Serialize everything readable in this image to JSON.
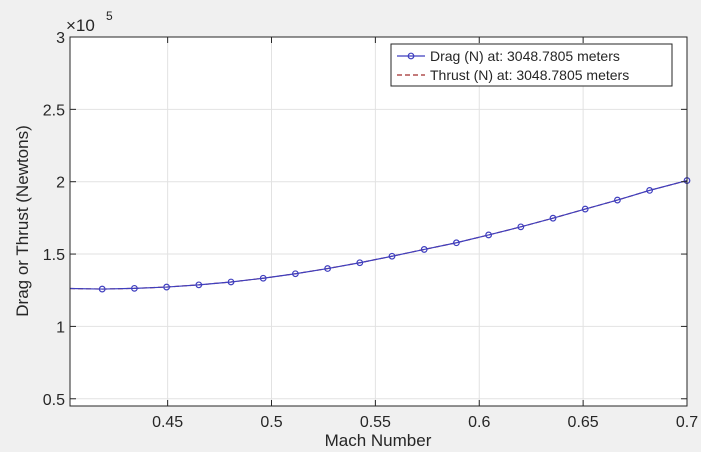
{
  "chart_data": {
    "type": "line",
    "xlabel": "Mach Number",
    "ylabel": "Drag or Thrust (Newtons)",
    "exponent_label": "×10",
    "exponent_power": "5",
    "xlim": [
      0.403,
      0.7
    ],
    "ylim": [
      0.45,
      3.0
    ],
    "x_ticks": [
      0.45,
      0.5,
      0.55,
      0.6,
      0.65,
      0.7
    ],
    "x_tick_labels": [
      "0.45",
      "0.5",
      "0.55",
      "0.6",
      "0.65",
      "0.7"
    ],
    "y_ticks": [
      0.5,
      1,
      1.5,
      2,
      2.5,
      3
    ],
    "y_tick_labels": [
      "0.5",
      "1",
      "1.5",
      "2",
      "2.5",
      "3"
    ],
    "grid": true,
    "legend_position": "top-right",
    "series": [
      {
        "name": "Drag (N) at: 3048.7805 meters",
        "color": "#3f3fbf",
        "marker": "circle",
        "x": [
          0.403,
          0.4185,
          0.434,
          0.4495,
          0.465,
          0.4805,
          0.496,
          0.5115,
          0.527,
          0.5425,
          0.558,
          0.5735,
          0.589,
          0.6045,
          0.62,
          0.6355,
          0.651,
          0.6665,
          0.682,
          0.7
        ],
        "y": [
          1.262,
          1.258,
          1.263,
          1.272,
          1.287,
          1.307,
          1.333,
          1.364,
          1.4,
          1.44,
          1.485,
          1.532,
          1.578,
          1.632,
          1.688,
          1.748,
          1.811,
          1.873,
          1.94,
          2.008
        ]
      },
      {
        "name": "Thrust (N) at: 3048.7805 meters",
        "color": "#a02c2c",
        "marker": "none",
        "x": [
          0.403,
          0.4185,
          0.434,
          0.4495,
          0.465,
          0.4805,
          0.496,
          0.5115,
          0.527,
          0.5425,
          0.558,
          0.5735,
          0.589,
          0.6045,
          0.62,
          0.6355,
          0.651,
          0.6665,
          0.682,
          0.7
        ],
        "y": [
          1.262,
          1.258,
          1.263,
          1.272,
          1.287,
          1.307,
          1.333,
          1.364,
          1.4,
          1.44,
          1.485,
          1.532,
          1.578,
          1.632,
          1.688,
          1.748,
          1.811,
          1.873,
          1.94,
          2.008
        ]
      }
    ]
  }
}
